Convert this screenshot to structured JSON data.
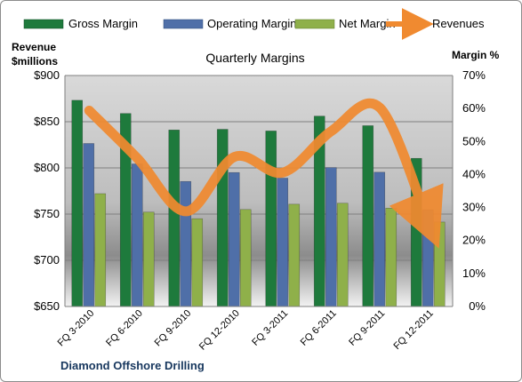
{
  "chart_data": {
    "type": "bar",
    "title": "Quarterly Margins",
    "source": "Diamond Offshore Drilling",
    "categories": [
      "FQ 3-2010",
      "FQ 6-2010",
      "FQ 9-2010",
      "FQ 12-2010",
      "FQ 3-2011",
      "FQ 6-2011",
      "FQ 9-2011",
      "FQ 12-2011"
    ],
    "y_left": {
      "title": [
        "Revenue",
        "$millions"
      ],
      "ylim": [
        650,
        900
      ],
      "ticks": [
        650,
        700,
        750,
        800,
        850,
        900
      ],
      "tick_labels": [
        "$650",
        "$700",
        "$750",
        "$800",
        "$850",
        "$900"
      ]
    },
    "y_right": {
      "title": "Margin %",
      "ylim": [
        0,
        70
      ],
      "ticks": [
        0,
        10,
        20,
        30,
        40,
        50,
        60,
        70
      ],
      "tick_labels": [
        "0%",
        "10%",
        "20%",
        "30%",
        "40%",
        "50%",
        "60%",
        "70%"
      ]
    },
    "series": [
      {
        "name": "Gross Margin",
        "kind": "bar",
        "axis": "right",
        "color": "#1e7a3c",
        "values": [
          62.5,
          58.5,
          53.5,
          53.7,
          53.2,
          57.7,
          54.8,
          44.9
        ]
      },
      {
        "name": "Operating Margin",
        "kind": "bar",
        "axis": "right",
        "color": "#4f6fa8",
        "values": [
          49.4,
          43.2,
          37.9,
          40.6,
          38.9,
          42.1,
          40.7,
          29.3
        ]
      },
      {
        "name": "Net Margin",
        "kind": "bar",
        "axis": "right",
        "color": "#8fb04a",
        "values": [
          34.2,
          28.6,
          26.6,
          29.4,
          31.0,
          31.3,
          29.8,
          25.6
        ]
      },
      {
        "name": "Revenues",
        "kind": "line",
        "axis": "left",
        "color": "#f08a30",
        "values": [
          862,
          810,
          753,
          812,
          795,
          840,
          865,
          740
        ]
      }
    ],
    "grid": true,
    "legend_position": "top"
  }
}
